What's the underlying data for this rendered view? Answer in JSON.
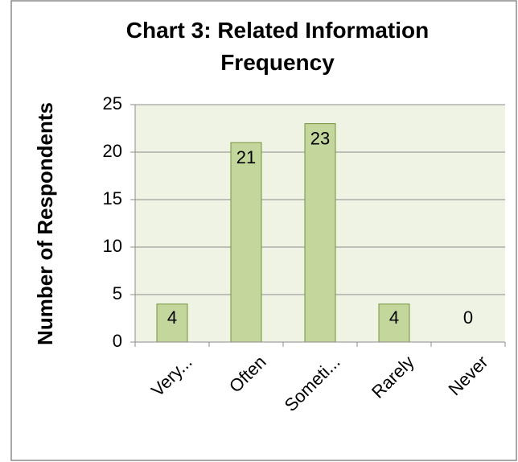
{
  "chart_data": {
    "type": "bar",
    "title": "Chart 3: Related Information Frequency",
    "y_label": "Number of Respondents",
    "categories": [
      "Very...",
      "Often",
      "Someti...",
      "Rarely",
      "Never"
    ],
    "values": [
      4,
      21,
      23,
      4,
      0
    ],
    "color": "#c3d69b",
    "ylim": [
      0,
      25
    ],
    "yticks": [
      0,
      5,
      10,
      15,
      20,
      25
    ],
    "grid": true
  }
}
